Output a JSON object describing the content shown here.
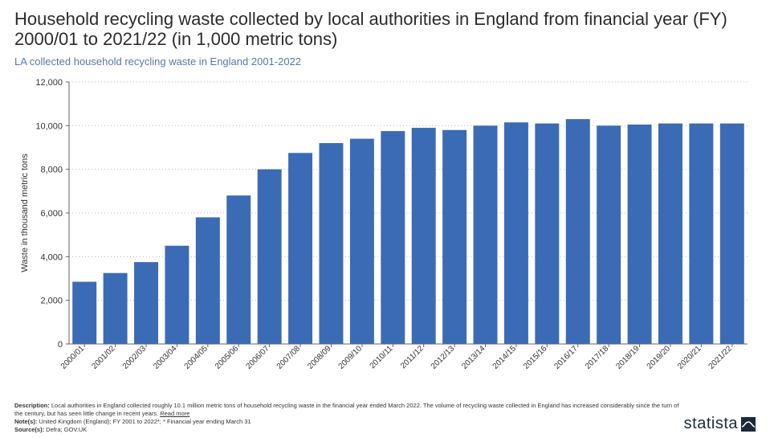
{
  "title": "Household recycling waste collected by local authorities in England from financial year (FY) 2000/01 to 2021/22 (in 1,000 metric tons)",
  "title_fontsize": 22,
  "title_color": "#2c2c2c",
  "subtitle": "LA collected household recycling waste in England 2001-2022",
  "subtitle_fontsize": 13,
  "subtitle_color": "#5a78a6",
  "chart": {
    "type": "bar",
    "categories": [
      "2000/01",
      "2001/02",
      "2002/03",
      "2003/04",
      "2004/05",
      "2005/06",
      "2006/07",
      "2007/08",
      "2008/09",
      "2009/10",
      "2010/11",
      "2011/12",
      "2012/13",
      "2013/14",
      "2014/15",
      "2015/16",
      "2016/17",
      "2017/18",
      "2018/19",
      "2019/20",
      "2020/21",
      "2021/22"
    ],
    "values": [
      2850,
      3250,
      3750,
      4500,
      5800,
      6800,
      8000,
      8750,
      9200,
      9400,
      9750,
      9900,
      9800,
      10000,
      10150,
      10100,
      10300,
      10000,
      10050,
      10100,
      10100,
      10100
    ],
    "bar_color": "#3b6bb5",
    "ylabel": "Waste in thousand metric tons",
    "ylabel_fontsize": 11,
    "ylim": [
      0,
      12000
    ],
    "ytick_step": 2000,
    "xlabel_fontsize": 10,
    "ylabel_tick_fontsize": 11,
    "background_color": "#ffffff",
    "grid_color": "#b8b8b8",
    "grid_dash": "1,3",
    "axis_color": "#666666",
    "bar_width_ratio": 0.78,
    "tick_label_color": "#333333",
    "xlabel_rotation": -45
  },
  "footer": {
    "description_label": "Description:",
    "description_text": " Local authorities in England collected roughly 10.1 million metric tons of household recycling waste in the financial year ended March 2022. The volume of recycling waste collected in England has increased considerably since the turn of the century, but has seen little change in recent years. ",
    "readmore": "Read more",
    "note_label": "Note(s):",
    "note_text": " United Kingdom (England); FY 2001 to 2022*; * Financial year ending March 31",
    "source_label": "Source(s):",
    "source_text": " Defra; GOV.UK",
    "brand": "statista",
    "brand_color": "#1b2a3a"
  }
}
